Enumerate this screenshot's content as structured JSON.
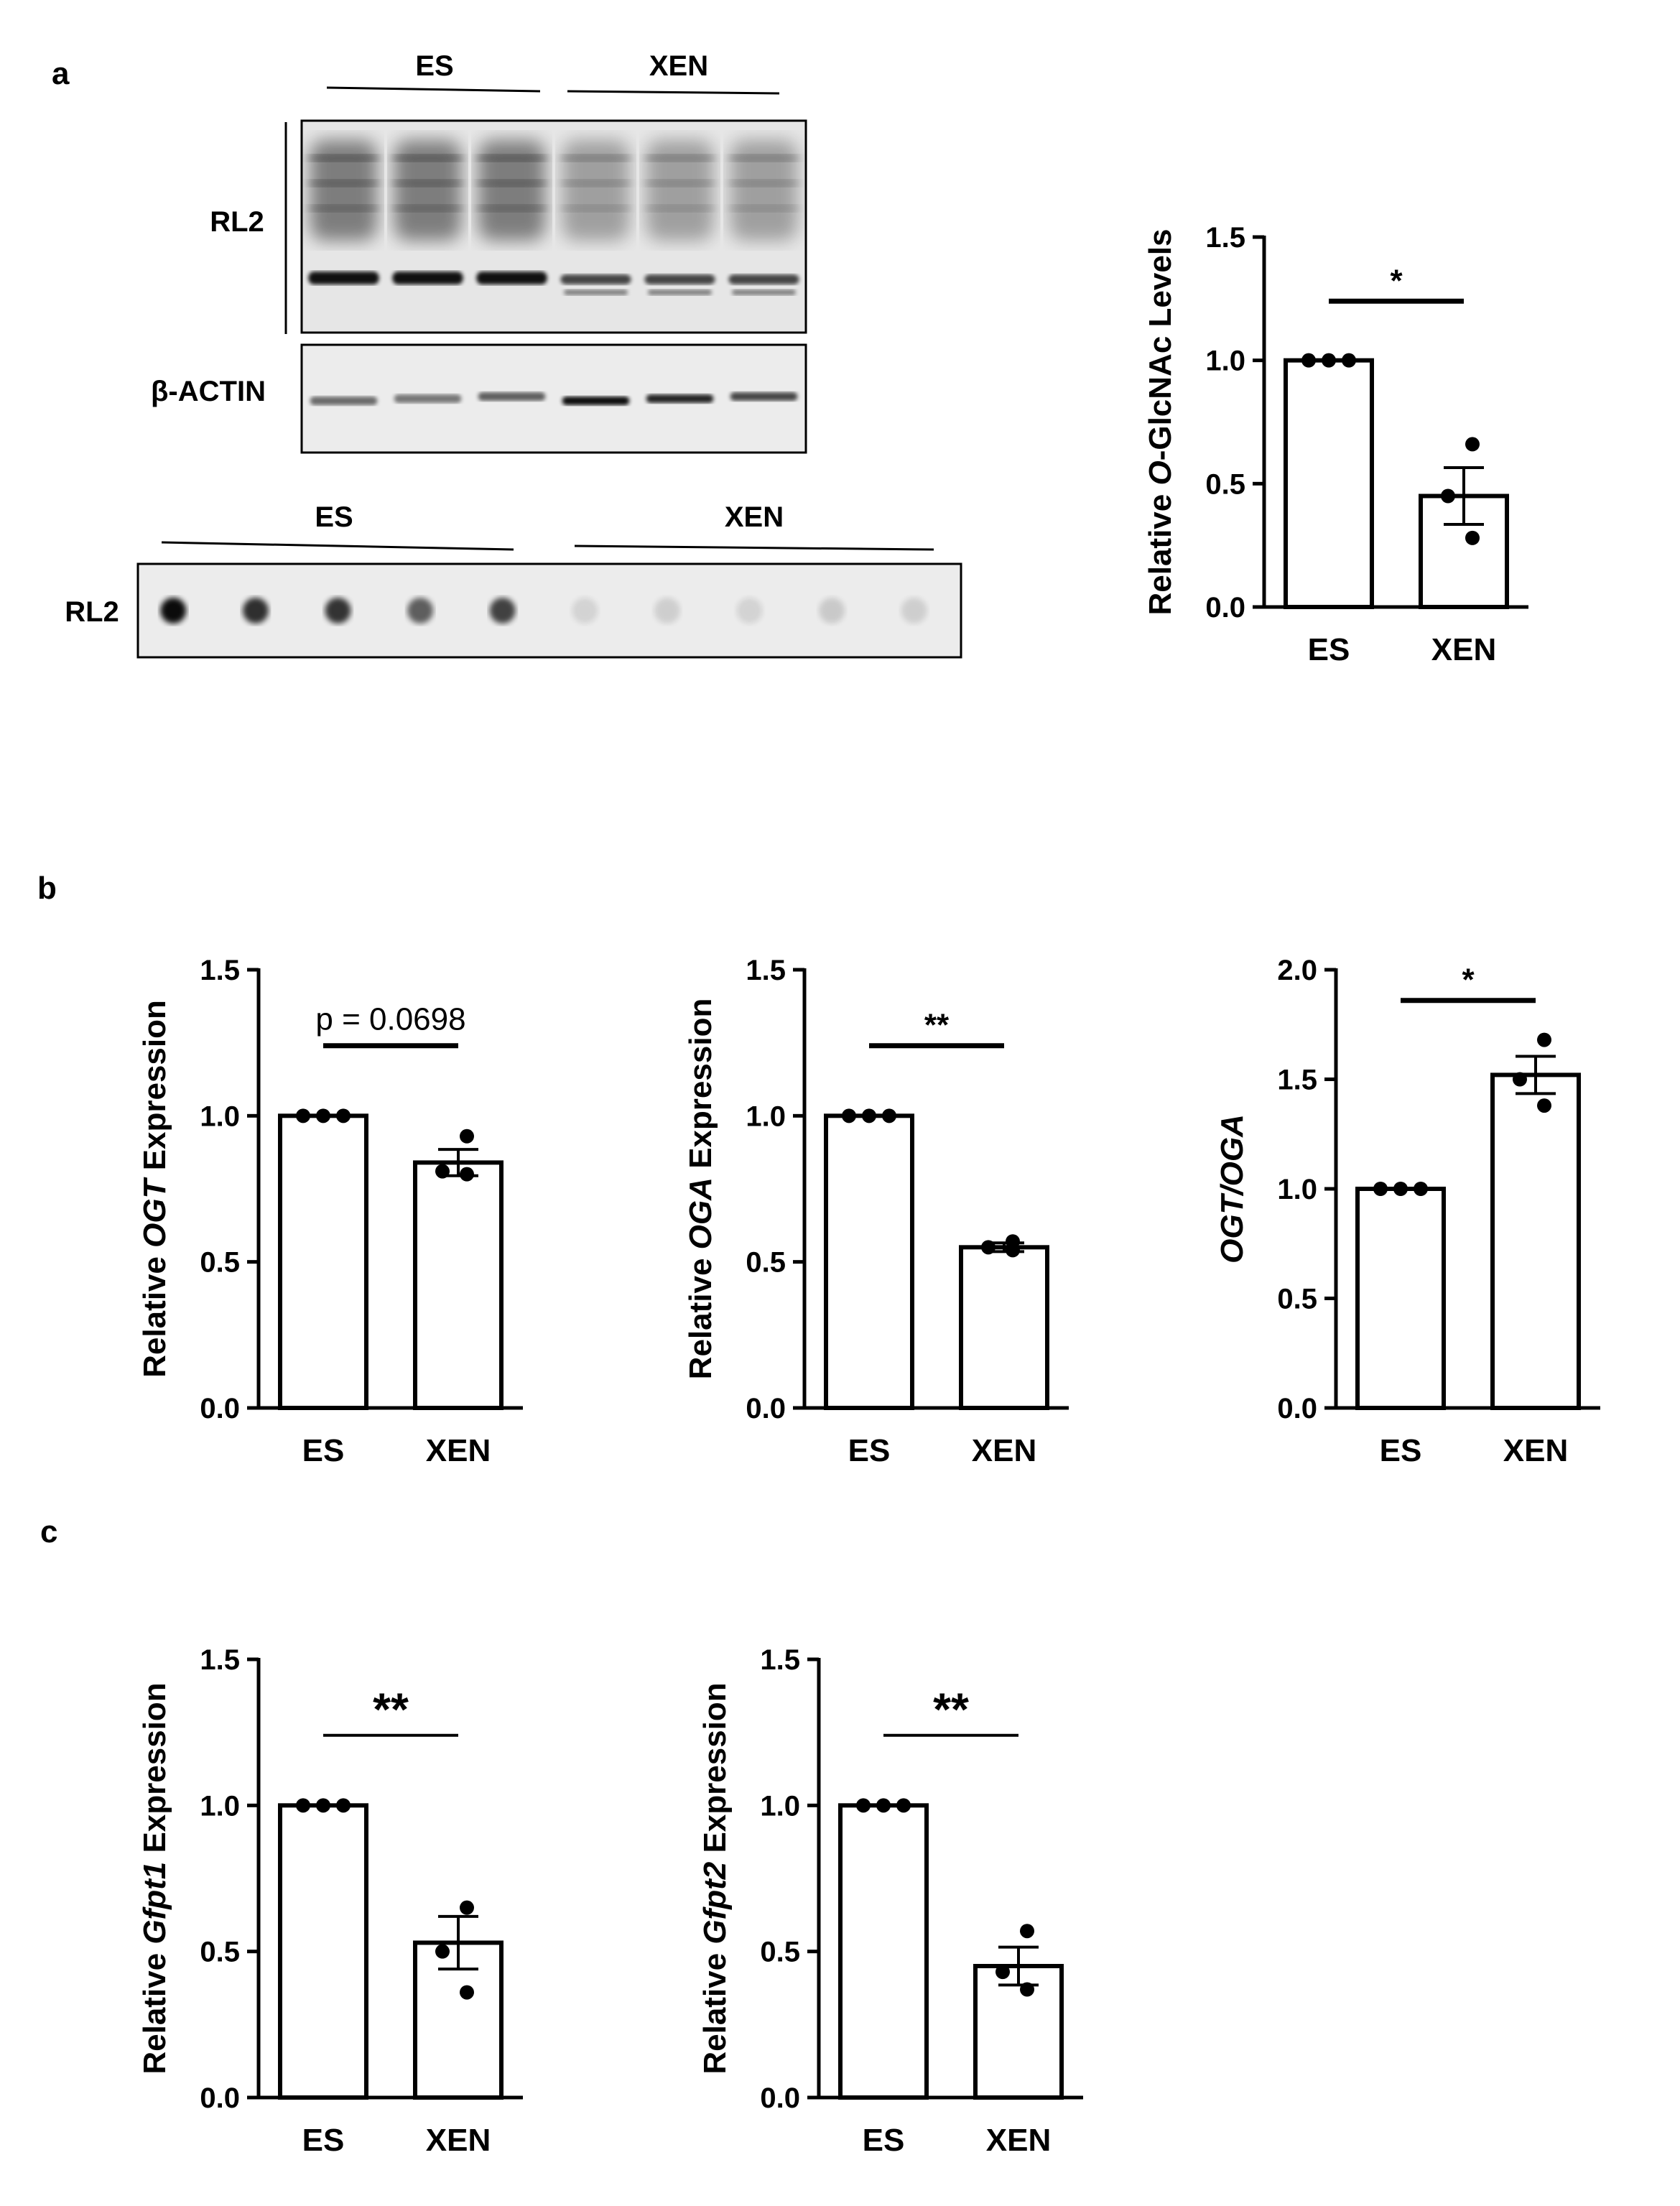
{
  "panels": {
    "a": {
      "letter": "a"
    },
    "b": {
      "letter": "b"
    },
    "c": {
      "letter": "c"
    }
  },
  "western_blot": {
    "group_labels": [
      "ES",
      "XEN"
    ],
    "rows": [
      {
        "label": "RL2",
        "lanes": 6
      },
      {
        "label": "β-ACTIN",
        "lanes": 6
      }
    ]
  },
  "dot_blot": {
    "group_labels": [
      "ES",
      "XEN"
    ],
    "row_label": "RL2",
    "intensities": [
      0.95,
      0.8,
      0.78,
      0.6,
      0.72,
      0.1,
      0.12,
      0.1,
      0.14,
      0.12
    ]
  },
  "chart_data": [
    {
      "id": "a-oglcnac",
      "type": "bar",
      "categories": [
        "ES",
        "XEN"
      ],
      "values": [
        1.0,
        0.45
      ],
      "errors": [
        0.0,
        0.115
      ],
      "points": [
        [
          1.0,
          1.0,
          1.0
        ],
        [
          0.66,
          0.45,
          0.28
        ]
      ],
      "ylabel_parts": [
        {
          "t": "Relative ",
          "i": false
        },
        {
          "t": "O",
          "i": true
        },
        {
          "t": "-GlcNAc Levels",
          "i": false
        }
      ],
      "ylim": [
        0,
        1.5
      ],
      "yticks": [
        "0.0",
        "0.5",
        "1.0",
        "1.5"
      ],
      "significance": "*",
      "sig_value": 1.24
    },
    {
      "id": "b-ogt",
      "type": "bar",
      "categories": [
        "ES",
        "XEN"
      ],
      "values": [
        1.0,
        0.84
      ],
      "errors": [
        0.0,
        0.045
      ],
      "points": [
        [
          1.0,
          1.0,
          1.0
        ],
        [
          0.93,
          0.81,
          0.8
        ]
      ],
      "ylabel_parts": [
        {
          "t": "Relative ",
          "i": false
        },
        {
          "t": "OGT",
          "i": true
        },
        {
          "t": " Expression",
          "i": false
        }
      ],
      "ylim": [
        0,
        1.5
      ],
      "yticks": [
        "0.0",
        "0.5",
        "1.0",
        "1.5"
      ],
      "significance": "p = 0.0698",
      "sig_value": 1.24
    },
    {
      "id": "b-oga",
      "type": "bar",
      "categories": [
        "ES",
        "XEN"
      ],
      "values": [
        1.0,
        0.55
      ],
      "errors": [
        0.0,
        0.015
      ],
      "points": [
        [
          1.0,
          1.0,
          1.0
        ],
        [
          0.57,
          0.55,
          0.54
        ]
      ],
      "ylabel_parts": [
        {
          "t": "Relative ",
          "i": false
        },
        {
          "t": "OGA",
          "i": true
        },
        {
          "t": " Expression",
          "i": false
        }
      ],
      "ylim": [
        0,
        1.5
      ],
      "yticks": [
        "0.0",
        "0.5",
        "1.0",
        "1.5"
      ],
      "significance": "**",
      "sig_value": 1.24
    },
    {
      "id": "b-ratio",
      "type": "bar",
      "categories": [
        "ES",
        "XEN"
      ],
      "values": [
        1.0,
        1.52
      ],
      "errors": [
        0.0,
        0.085
      ],
      "points": [
        [
          1.0,
          1.0,
          1.0
        ],
        [
          1.68,
          1.5,
          1.38
        ]
      ],
      "ylabel_parts": [
        {
          "t": "OGT/OGA",
          "i": true
        }
      ],
      "ylim": [
        0,
        2.0
      ],
      "yticks": [
        "0.0",
        "0.5",
        "1.0",
        "1.5",
        "2.0"
      ],
      "significance": "*",
      "sig_value": 1.86
    },
    {
      "id": "c-gfpt1",
      "type": "bar",
      "categories": [
        "ES",
        "XEN"
      ],
      "values": [
        1.0,
        0.53
      ],
      "errors": [
        0.0,
        0.09
      ],
      "points": [
        [
          1.0,
          1.0,
          1.0
        ],
        [
          0.65,
          0.5,
          0.36
        ]
      ],
      "ylabel_parts": [
        {
          "t": "Relative ",
          "i": false
        },
        {
          "t": "Gfpt1",
          "i": true
        },
        {
          "t": " Expression",
          "i": false
        }
      ],
      "ylim": [
        0,
        1.5
      ],
      "yticks": [
        "0.0",
        "0.5",
        "1.0",
        "1.5"
      ],
      "significance": "**",
      "sig_value": 1.24
    },
    {
      "id": "c-gfpt2",
      "type": "bar",
      "categories": [
        "ES",
        "XEN"
      ],
      "values": [
        1.0,
        0.45
      ],
      "errors": [
        0.0,
        0.065
      ],
      "points": [
        [
          1.0,
          1.0,
          1.0
        ],
        [
          0.57,
          0.43,
          0.37
        ]
      ],
      "ylabel_parts": [
        {
          "t": "Relative ",
          "i": false
        },
        {
          "t": "Gfpt2",
          "i": true
        },
        {
          "t": " Expression",
          "i": false
        }
      ],
      "ylim": [
        0,
        1.5
      ],
      "yticks": [
        "0.0",
        "0.5",
        "1.0",
        "1.5"
      ],
      "significance": "**",
      "sig_value": 1.24
    }
  ]
}
